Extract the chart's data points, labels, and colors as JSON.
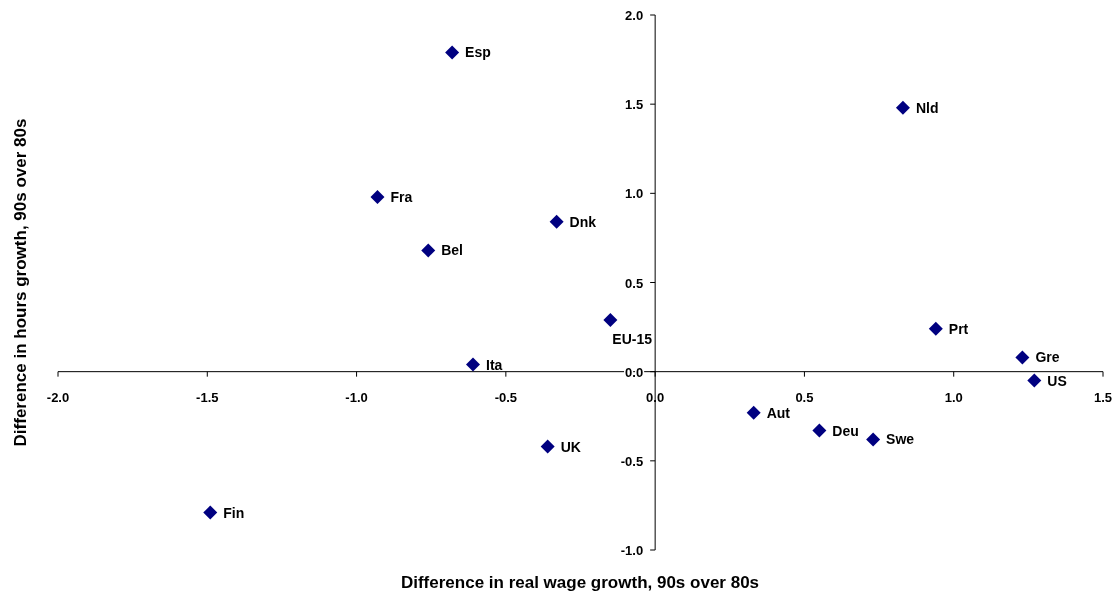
{
  "chart_data": {
    "type": "scatter",
    "xlabel": "Difference in real wage growth, 90s over 80s",
    "ylabel": "Difference in hours growth, 90s over 80s",
    "x": [
      -0.68,
      0.83,
      -0.93,
      -0.33,
      -0.76,
      -0.15,
      0.94,
      -0.61,
      1.23,
      1.27,
      0.33,
      0.55,
      0.73,
      -0.36,
      -1.49
    ],
    "series": [
      {
        "color": "#000080",
        "values": [
          1.79,
          1.48,
          0.98,
          0.84,
          0.68,
          0.29,
          0.24,
          0.04,
          0.08,
          -0.05,
          -0.23,
          -0.33,
          -0.38,
          -0.42,
          -0.79
        ]
      }
    ],
    "annotations": [
      {
        "text": "Esp",
        "x": -0.68,
        "y": 1.79
      },
      {
        "text": "Nld",
        "x": 0.83,
        "y": 1.48
      },
      {
        "text": "Fra",
        "x": -0.93,
        "y": 0.98
      },
      {
        "text": "Dnk",
        "x": -0.33,
        "y": 0.84
      },
      {
        "text": "Bel",
        "x": -0.76,
        "y": 0.68
      },
      {
        "text": "EU-15",
        "x": -0.15,
        "y": 0.29
      },
      {
        "text": "Prt",
        "x": 0.94,
        "y": 0.24
      },
      {
        "text": "Ita",
        "x": -0.61,
        "y": 0.04
      },
      {
        "text": "Gre",
        "x": 1.23,
        "y": 0.08
      },
      {
        "text": "US",
        "x": 1.27,
        "y": -0.05
      },
      {
        "text": "Aut",
        "x": 0.33,
        "y": -0.23
      },
      {
        "text": "Deu",
        "x": 0.55,
        "y": -0.33
      },
      {
        "text": "Swe",
        "x": 0.73,
        "y": -0.38
      },
      {
        "text": "UK",
        "x": -0.36,
        "y": -0.42
      },
      {
        "text": "Fin",
        "x": -1.49,
        "y": -0.79
      }
    ],
    "xlim": [
      -2,
      1.5
    ],
    "ylim": [
      -1,
      2
    ],
    "xticks": [
      {
        "value": -2,
        "label": "-2.0"
      },
      {
        "value": -1.5,
        "label": "-1.5"
      },
      {
        "value": -1,
        "label": "-1.0"
      },
      {
        "value": -0.5,
        "label": "-0.5"
      },
      {
        "value": 0,
        "label": "0.0"
      },
      {
        "value": 0.5,
        "label": "0.5"
      },
      {
        "value": 1,
        "label": "1.0"
      },
      {
        "value": 1.5,
        "label": "1.5"
      }
    ],
    "yticks": [
      {
        "value": -1,
        "label": "-1.0"
      },
      {
        "value": -0.5,
        "label": "-0.5"
      },
      {
        "value": 0,
        "label": "0.0"
      },
      {
        "value": 0.5,
        "label": "0.5"
      },
      {
        "value": 1,
        "label": "1.0"
      },
      {
        "value": 1.5,
        "label": "1.5"
      },
      {
        "value": 2,
        "label": "2.0"
      }
    ],
    "marker": "diamond",
    "grid": false
  }
}
